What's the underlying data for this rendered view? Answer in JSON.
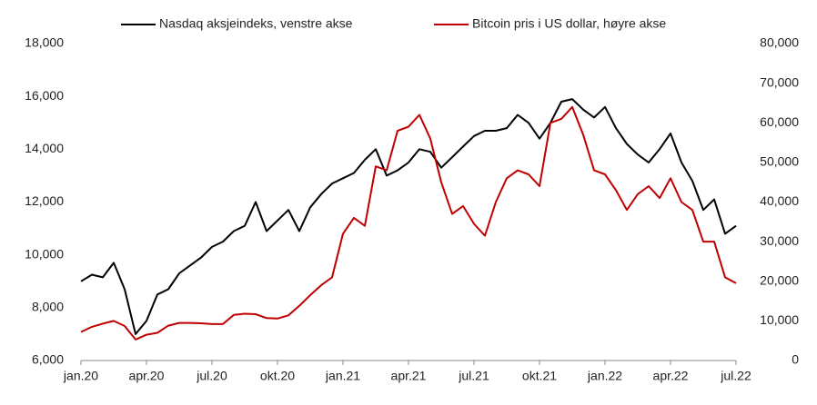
{
  "chart_data": {
    "type": "line",
    "categories": [
      "jan.20",
      null,
      null,
      null,
      null,
      null,
      "apr.20",
      null,
      null,
      null,
      null,
      null,
      "jul.20",
      null,
      null,
      null,
      null,
      null,
      "okt.20",
      null,
      null,
      null,
      null,
      null,
      "jan.21",
      null,
      null,
      null,
      null,
      null,
      "apr.21",
      null,
      null,
      null,
      null,
      null,
      "jul.21",
      null,
      null,
      null,
      null,
      null,
      "okt.21",
      null,
      null,
      null,
      null,
      null,
      "jan.22",
      null,
      null,
      null,
      null,
      null,
      "apr.22",
      null,
      null,
      null,
      null,
      null,
      "jul.22"
    ],
    "series": [
      {
        "name": "Nasdaq aksjeindeks, venstre akse",
        "color": "#000000",
        "values": [
          9000,
          9250,
          9150,
          9700,
          8700,
          7000,
          7500,
          8500,
          8700,
          9300,
          9600,
          9900,
          10300,
          10500,
          10900,
          11100,
          12000,
          10900,
          11300,
          11700,
          10900,
          11800,
          12300,
          12700,
          12900,
          13100,
          13600,
          14000,
          13000,
          13200,
          13500,
          14000,
          13900,
          13300,
          13700,
          14100,
          14500,
          14700,
          14700,
          14800,
          15300,
          15000,
          14400,
          15000,
          15800,
          15900,
          15500,
          15200,
          15600,
          14800,
          14200,
          13800,
          13500,
          14000,
          14600,
          13500,
          12800,
          11700,
          12100,
          10800,
          11100
        ]
      },
      {
        "name": "Bitcoin pris i US dollar, høyre akse",
        "color": "#c00000",
        "axis": "y2",
        "values": [
          7200,
          8500,
          9300,
          10000,
          8700,
          5300,
          6500,
          7000,
          8800,
          9500,
          9500,
          9400,
          9200,
          9200,
          11500,
          11800,
          11700,
          10700,
          10600,
          11400,
          13800,
          16500,
          19000,
          21000,
          32000,
          36000,
          34000,
          49000,
          48000,
          58000,
          59000,
          62000,
          56000,
          45000,
          37000,
          39000,
          34500,
          31500,
          40000,
          46000,
          48000,
          47000,
          44000,
          60000,
          61000,
          64000,
          57000,
          48000,
          47000,
          43000,
          38000,
          42000,
          44000,
          41000,
          46000,
          40000,
          38000,
          30000,
          30000,
          21000,
          19500
        ]
      }
    ],
    "ylim": [
      6000,
      18000
    ],
    "yticks": [
      {
        "value": 6000,
        "label": "6,000"
      },
      {
        "value": 8000,
        "label": "8,000"
      },
      {
        "value": 10000,
        "label": "10,000"
      },
      {
        "value": 12000,
        "label": "12,000"
      },
      {
        "value": 14000,
        "label": "14,000"
      },
      {
        "value": 16000,
        "label": "16,000"
      },
      {
        "value": 18000,
        "label": "18,000"
      }
    ],
    "y2lim": [
      0,
      80000
    ],
    "y2ticks": [
      0,
      {
        "value": 10000,
        "label": "10,000"
      },
      {
        "value": 20000,
        "label": "20,000"
      },
      {
        "value": 30000,
        "label": "30,000"
      },
      {
        "value": 40000,
        "label": "40,000"
      },
      {
        "value": 50000,
        "label": "50,000"
      },
      {
        "value": 60000,
        "label": "60,000"
      },
      {
        "value": 70000,
        "label": "70,000"
      },
      {
        "value": 80000,
        "label": "80,000"
      }
    ],
    "legend": "top"
  }
}
